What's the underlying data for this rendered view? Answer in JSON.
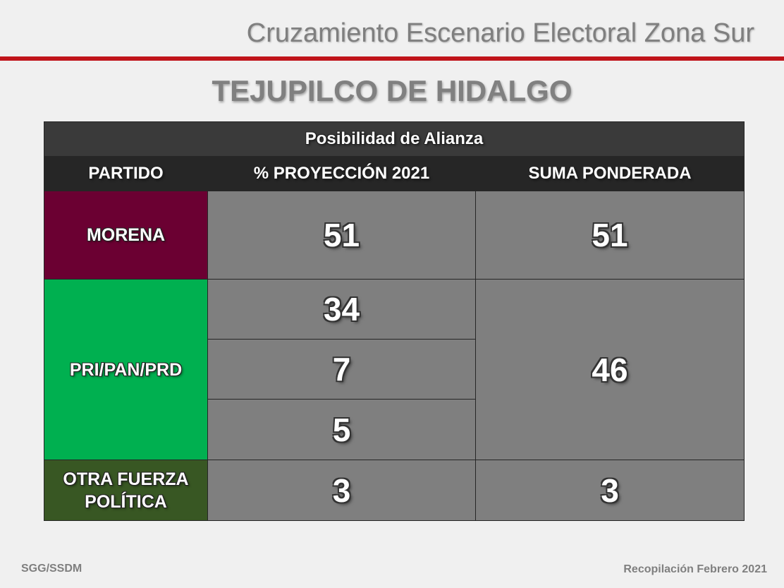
{
  "header": {
    "title": "Cruzamiento Escenario Electoral Zona Sur",
    "rule_color": "#c0141a"
  },
  "main_title": "TEJUPILCO DE HIDALGO",
  "table": {
    "caption": "Posibilidad de Alianza",
    "columns": [
      "PARTIDO",
      "% PROYECCIÓN 2021",
      "SUMA PONDERADA"
    ],
    "rows": [
      {
        "partido": "MORENA",
        "color": "#6b0032",
        "proyeccion": [
          "51"
        ],
        "suma": "51"
      },
      {
        "partido": "PRI/PAN/PRD",
        "color": "#00b050",
        "proyeccion": [
          "34",
          "7",
          "5"
        ],
        "suma": "46"
      },
      {
        "partido": "OTRA FUERZA POLÍTICA",
        "color": "#385723",
        "proyeccion": [
          "3"
        ],
        "suma": "3"
      }
    ]
  },
  "footer": {
    "left": "SGG/SSDM",
    "right": "Recopilación Febrero 2021"
  }
}
